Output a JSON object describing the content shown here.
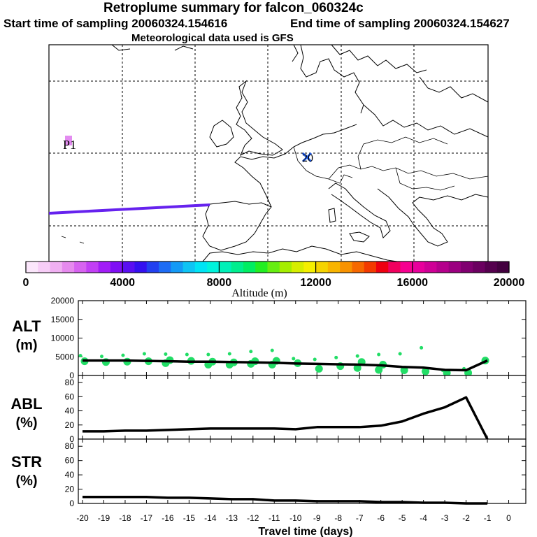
{
  "header": {
    "title": "Retroplume summary for falcon_060324c",
    "start_label": "Start time of sampling 20060324.154616",
    "end_label": "End time of sampling 20060324.154627",
    "met_label": "Meteorological data used is GFS"
  },
  "map": {
    "release_marker": "20",
    "plume_label": "P1",
    "plume_color": "#6622ee"
  },
  "chart_data": [
    {
      "type": "colorbar",
      "title": "Altitude (m)",
      "range": [
        0,
        20000
      ],
      "tick_labels": [
        "0",
        "4000",
        "8000",
        "12000",
        "16000",
        "20000"
      ],
      "colors": [
        "#fbe6fb",
        "#f7cdf7",
        "#f0b0f2",
        "#e68aee",
        "#d763f0",
        "#c23ff5",
        "#a21cf7",
        "#7f0ef4",
        "#5a0ff2",
        "#3410f0",
        "#2240f0",
        "#1d6cf5",
        "#149af6",
        "#0ec4f4",
        "#00e4f5",
        "#00f4dc",
        "#00f0b8",
        "#00ee8e",
        "#00ee62",
        "#22ee22",
        "#66ee11",
        "#a5ee00",
        "#d6ee00",
        "#f5ef00",
        "#f5d300",
        "#f8b400",
        "#f89200",
        "#f66800",
        "#f33a00",
        "#ee0010",
        "#f0005e",
        "#f60090",
        "#e8009c",
        "#cf0096",
        "#b5008c",
        "#9b0080",
        "#800070",
        "#6b0060",
        "#55004e",
        "#43003f"
      ]
    },
    {
      "type": "line",
      "panel": "ALT",
      "ylabel": "ALT (m)",
      "ylim": [
        0,
        20000
      ],
      "yticks": [
        "20000",
        "15000",
        "10000",
        "5000",
        "0"
      ],
      "x": [
        -20,
        -19,
        -18,
        -17,
        -16,
        -15,
        -14,
        -13,
        -12,
        -11,
        -10,
        -9,
        -8,
        -7,
        -6,
        -5,
        -4,
        -3,
        -2,
        -1
      ],
      "values": [
        4000,
        4000,
        4000,
        3900,
        3800,
        3700,
        3700,
        3600,
        3500,
        3400,
        3200,
        3100,
        3000,
        2900,
        2700,
        2300,
        2100,
        1500,
        1400,
        4000
      ],
      "scatter": [
        {
          "x": -20,
          "y": [
            5300,
            3800
          ]
        },
        {
          "x": -19,
          "y": [
            5100,
            3600
          ]
        },
        {
          "x": -18,
          "y": [
            5400,
            3700
          ]
        },
        {
          "x": -17,
          "y": [
            5800,
            3800
          ]
        },
        {
          "x": -16,
          "y": [
            5700,
            4100,
            3300
          ]
        },
        {
          "x": -15,
          "y": [
            5600,
            3900
          ]
        },
        {
          "x": -14,
          "y": [
            5600,
            3700,
            2900
          ]
        },
        {
          "x": -13,
          "y": [
            5800,
            3500,
            2900
          ]
        },
        {
          "x": -12,
          "y": [
            6400,
            3800,
            3100
          ]
        },
        {
          "x": -11,
          "y": [
            6700,
            3900,
            2900
          ]
        },
        {
          "x": -10,
          "y": [
            4500,
            3300
          ]
        },
        {
          "x": -9,
          "y": [
            4300,
            1800
          ]
        },
        {
          "x": -8,
          "y": [
            4800,
            2500
          ]
        },
        {
          "x": -7,
          "y": [
            5200,
            3600,
            2000
          ]
        },
        {
          "x": -6,
          "y": [
            5600,
            2900,
            1500
          ]
        },
        {
          "x": -5,
          "y": [
            5800,
            1400
          ]
        },
        {
          "x": -4,
          "y": [
            7400,
            1100
          ]
        },
        {
          "x": -3,
          "y": [
            1400,
            700
          ]
        },
        {
          "x": -2,
          "y": [
            1800,
            700
          ]
        },
        {
          "x": -1,
          "y": [
            4000
          ]
        }
      ],
      "marker_color": "#22dd66"
    },
    {
      "type": "line",
      "panel": "ABL",
      "ylabel": "ABL (%)",
      "ylim": [
        0,
        90
      ],
      "yticks": [
        "80",
        "60",
        "40",
        "20",
        "0"
      ],
      "x": [
        -20,
        -19,
        -18,
        -17,
        -16,
        -15,
        -14,
        -13,
        -12,
        -11,
        -10,
        -9,
        -8,
        -7,
        -6,
        -5,
        -4,
        -3,
        -2,
        -1
      ],
      "values": [
        11,
        11,
        12,
        12,
        13,
        14,
        15,
        15,
        15,
        15,
        14,
        17,
        17,
        17,
        19,
        25,
        36,
        45,
        59,
        0
      ]
    },
    {
      "type": "line",
      "panel": "STR",
      "ylabel": "STR (%)",
      "ylim": [
        0,
        90
      ],
      "yticks": [
        "80",
        "60",
        "40",
        "20",
        "0"
      ],
      "x": [
        -20,
        -19,
        -18,
        -17,
        -16,
        -15,
        -14,
        -13,
        -12,
        -11,
        -10,
        -9,
        -8,
        -7,
        -6,
        -5,
        -4,
        -3,
        -2,
        -1
      ],
      "values": [
        9,
        9,
        9,
        9,
        8,
        8,
        7,
        6,
        6,
        4,
        4,
        3,
        3,
        3,
        2,
        2,
        1,
        1,
        0,
        0
      ],
      "xlabel": "Travel time (days)",
      "xticks": [
        "-20",
        "-19",
        "-18",
        "-17",
        "-16",
        "-15",
        "-14",
        "-13",
        "-12",
        "-11",
        "-10",
        "-9",
        "-8",
        "-7",
        "-6",
        "-5",
        "-4",
        "-3",
        "-2",
        "-1",
        "0"
      ]
    }
  ]
}
